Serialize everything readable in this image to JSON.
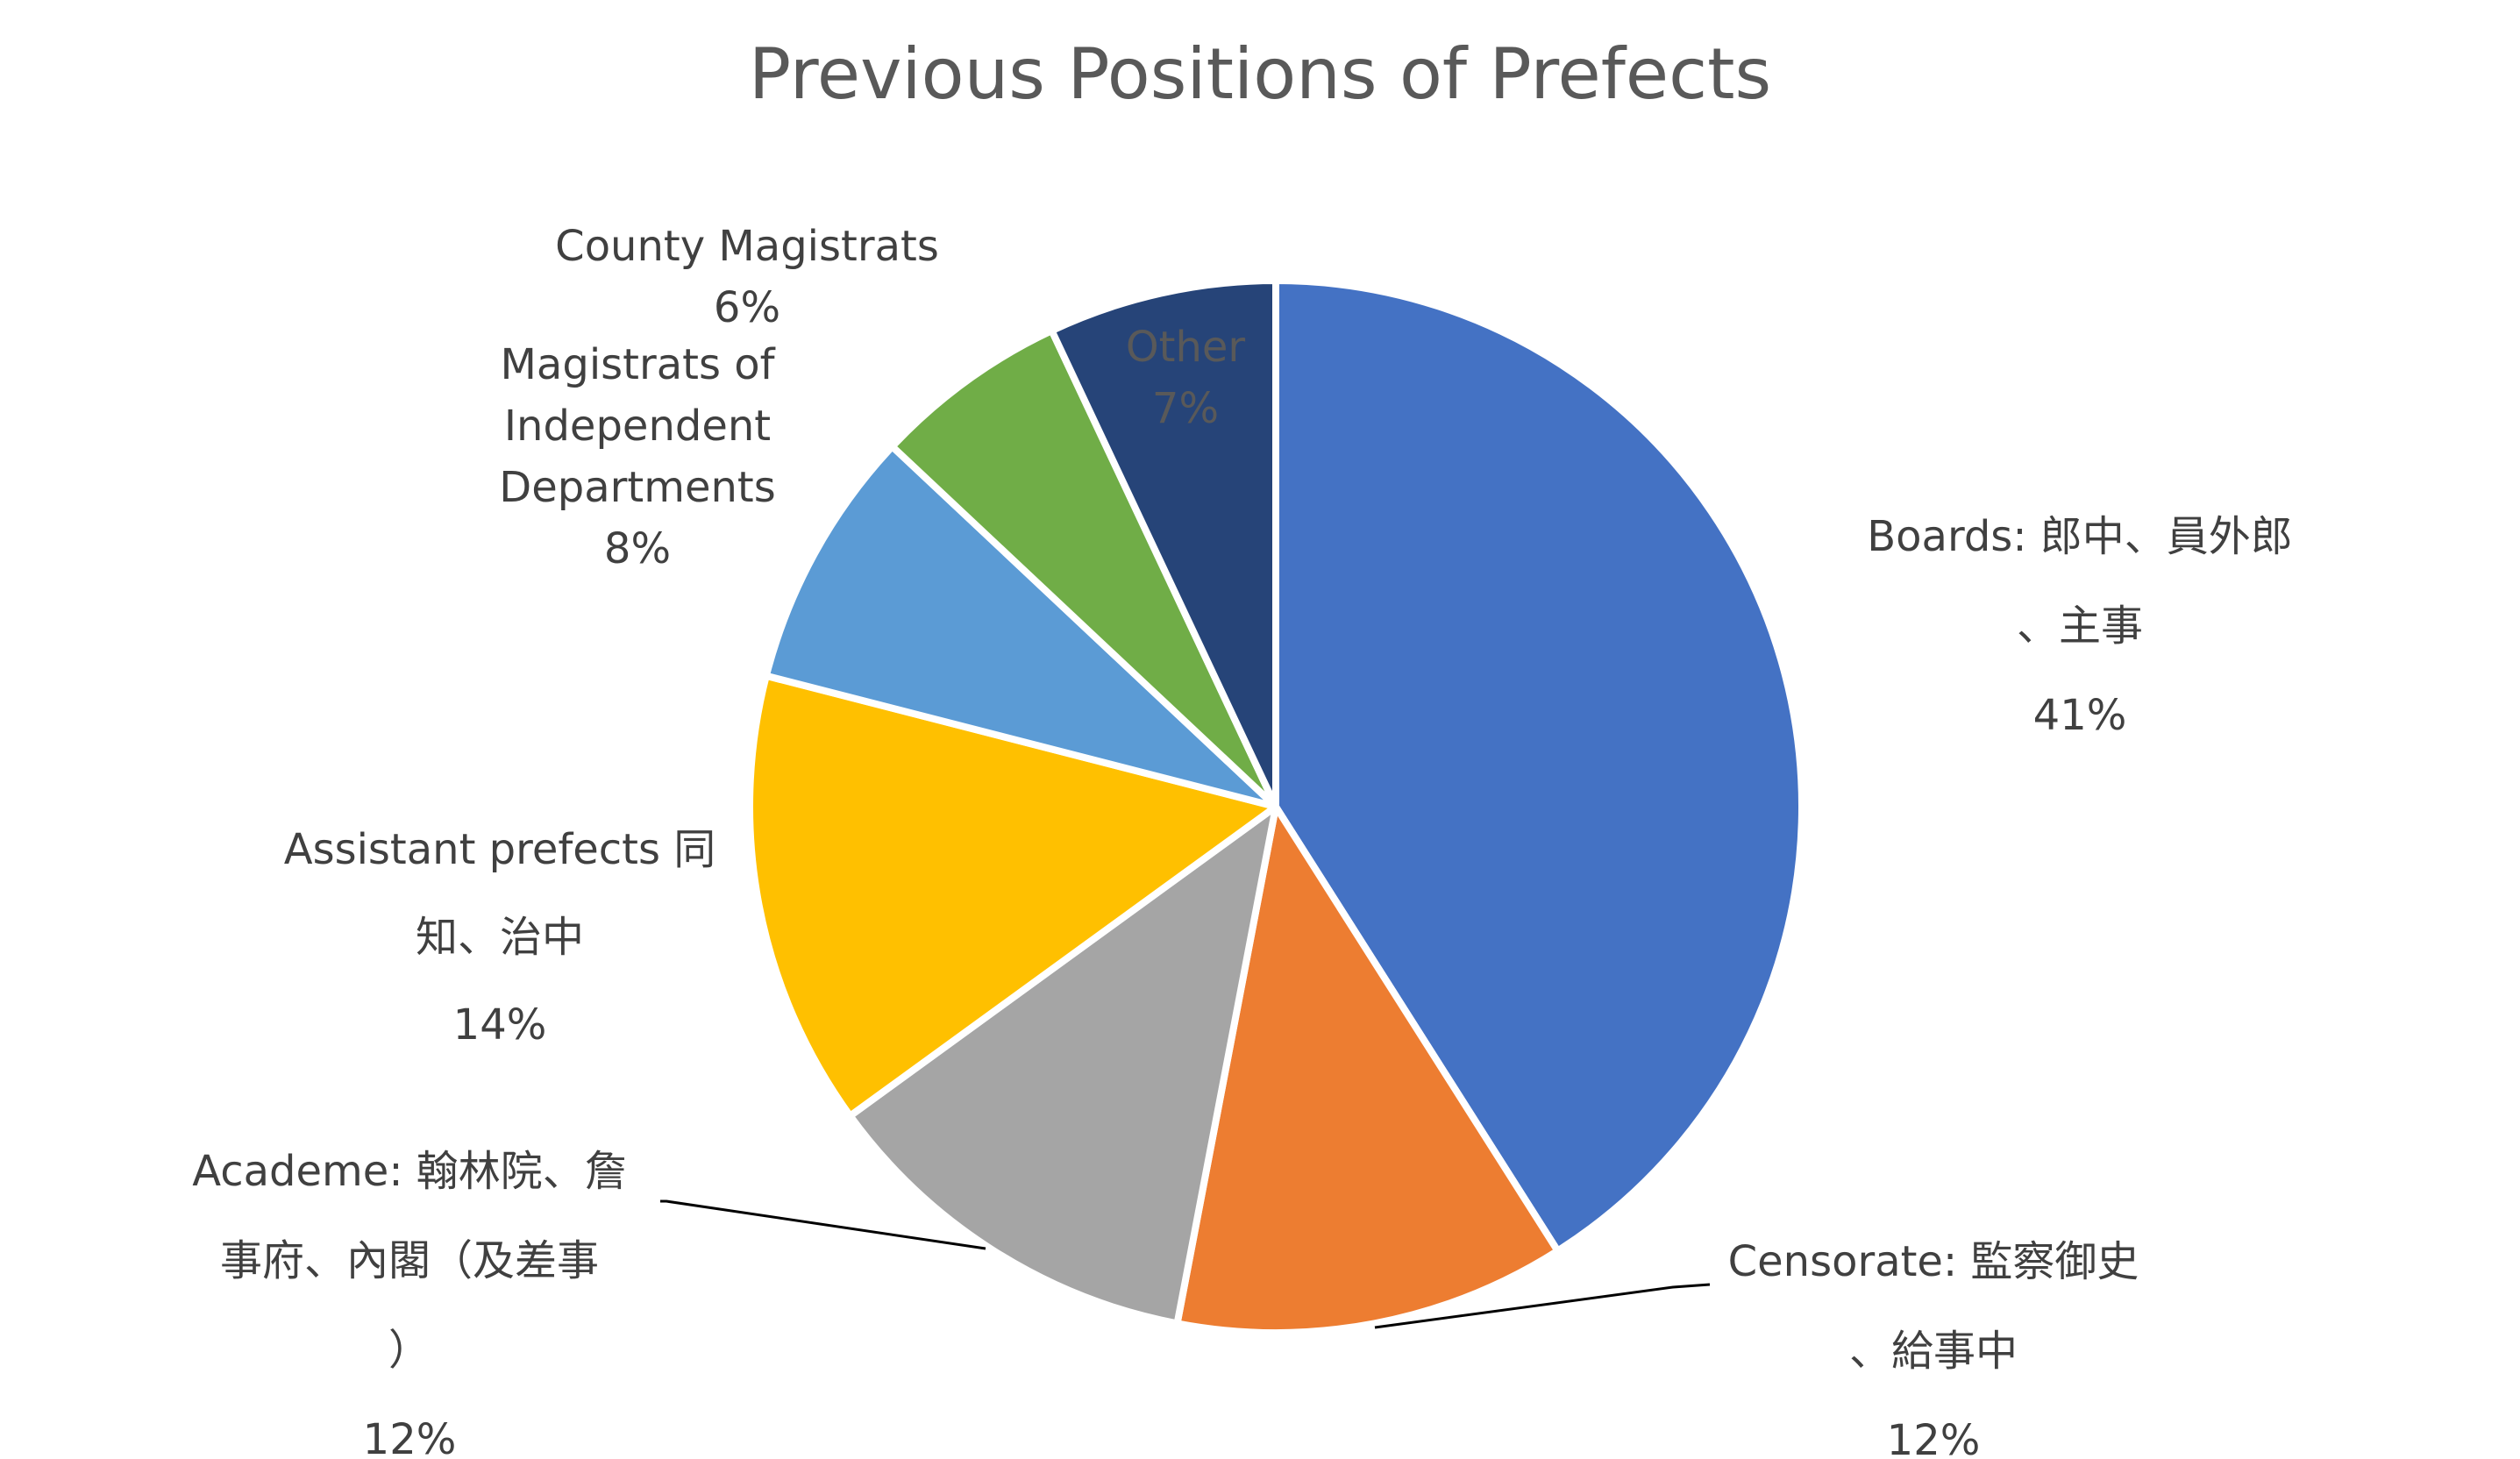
{
  "chart_data": {
    "type": "pie",
    "title": "Previous Positions of Prefects",
    "slices": [
      {
        "label": [
          "Boards: 郎中、員外郎",
          "、主事"
        ],
        "pct_label": "41%",
        "value": 41,
        "color": "#4472C4"
      },
      {
        "label": [
          "Censorate: 監察御史",
          "、給事中"
        ],
        "pct_label": "12%",
        "value": 12,
        "color": "#ED7D31"
      },
      {
        "label": [
          "Academe: 翰林院、詹",
          "事府、內閣（及差事",
          "）"
        ],
        "pct_label": "12%",
        "value": 12,
        "color": "#A5A5A5"
      },
      {
        "label": [
          "Assistant prefects 同",
          "知、治中"
        ],
        "pct_label": "14%",
        "value": 14,
        "color": "#FFC000"
      },
      {
        "label": [
          "Magistrats of",
          "Independent",
          "Departments"
        ],
        "pct_label": "8%",
        "value": 8,
        "color": "#5B9BD5"
      },
      {
        "label": [
          "County Magistrats"
        ],
        "pct_label": "6%",
        "value": 6,
        "color": "#70AD47"
      },
      {
        "label": [
          "Other"
        ],
        "pct_label": "7%",
        "value": 7,
        "color": "#264478"
      }
    ],
    "start_angle_deg": 0,
    "direction": "clockwise",
    "legend": "none"
  }
}
